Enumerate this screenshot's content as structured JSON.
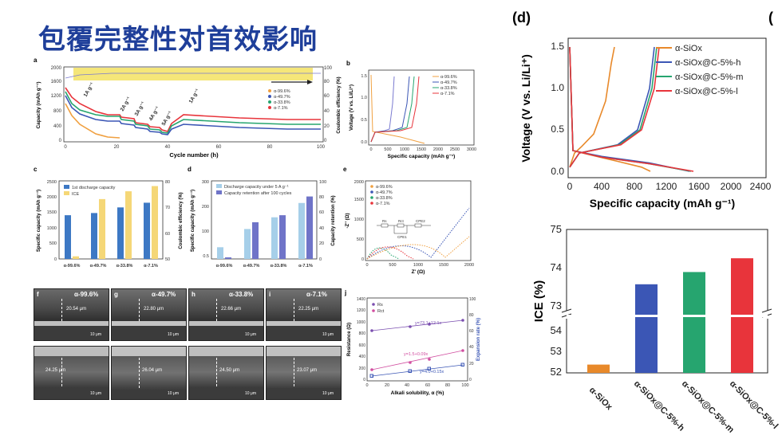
{
  "slide": {
    "title": "包覆完整性对首效影响"
  },
  "panel_a": {
    "letter": "a",
    "xlabel": "Cycle number (h)",
    "ylabel_left": "Capacity (mAh g⁻¹)",
    "ylabel_right": "Coulombic efficiency (%)",
    "rate_labels": [
      "1A g⁻¹",
      "2A g⁻¹",
      "3A g⁻¹",
      "4A g⁻¹",
      "5A g⁻¹",
      "1A g⁻¹"
    ],
    "legend": [
      "α-99.6%",
      "α-49.7%",
      "α-33.8%",
      "α-7.1%"
    ],
    "x_ticks": [
      "0",
      "20",
      "40",
      "60",
      "80",
      "100"
    ],
    "y_ticks": [
      "0",
      "400",
      "800",
      "1200",
      "1600",
      "2000"
    ],
    "y2_ticks": [
      "0",
      "20",
      "40",
      "60",
      "80",
      "100"
    ]
  },
  "panel_b": {
    "letter": "b",
    "xlabel": "Specific capacity (mAh g⁻¹)",
    "ylabel": "Voltage (V vs. Li/Li⁺)",
    "legend": [
      "α-99.6%",
      "α-49.7%",
      "α-33.8%",
      "α-7.1%"
    ],
    "x_ticks": [
      "0",
      "500",
      "1000",
      "1500",
      "2000",
      "2500",
      "3000"
    ],
    "y_ticks": [
      "0.0",
      "0.5",
      "1.0",
      "1.5"
    ]
  },
  "panel_c": {
    "letter": "c",
    "ylabel_left": "Specific capacity (mAh g⁻¹)",
    "ylabel_right": "Coulombic efficiency (%)",
    "legend": [
      "1st discharge capacity",
      "ICE"
    ],
    "categories": [
      "α-99.6%",
      "α-49.7%",
      "α-33.8%",
      "α-7.1%"
    ],
    "y_ticks": [
      "0",
      "500",
      "1000",
      "1500",
      "2000",
      "2500"
    ],
    "y2_ticks": [
      "50",
      "60",
      "70",
      "80"
    ]
  },
  "panel_d_small": {
    "letter": "d",
    "ylabel_left": "Specific capacity (mAh g⁻¹)",
    "ylabel_right": "Capacity retention (%)",
    "legend": [
      "Discharge capacity under 5 A g⁻¹",
      "Capacity retention after 100 cycles"
    ],
    "categories": [
      "α-99.6%",
      "α-49.7%",
      "α-33.8%",
      "α-7.1%"
    ],
    "y_ticks": [
      "0.5",
      "100",
      "200",
      "300"
    ],
    "y2_ticks": [
      "0",
      "20",
      "40",
      "60",
      "80",
      "100"
    ]
  },
  "panel_e": {
    "letter": "e",
    "xlabel": "Z' (Ω)",
    "ylabel": "-Z'' (Ω)",
    "legend": [
      "α-99.6%",
      "α-49.7%",
      "α-33.8%",
      "α-7.1%"
    ],
    "circuit": [
      "Rs",
      "Rct",
      "CPE1",
      "CPE2"
    ],
    "x_ticks": [
      "0",
      "500",
      "1000",
      "1500",
      "2000"
    ],
    "y_ticks": [
      "0",
      "500",
      "1000",
      "1500",
      "2000"
    ]
  },
  "panel_sem": {
    "top_letters": [
      "f",
      "g",
      "h",
      "i"
    ],
    "top_labels": [
      "α-99.6%",
      "α-49.7%",
      "α-33.8%",
      "α-7.1%"
    ],
    "top_thickness": [
      "20.54 μm",
      "22.80 μm",
      "22.66 μm",
      "22.25 μm"
    ],
    "bottom_thickness": [
      "24.25 μm",
      "26.04 μm",
      "24.50 μm",
      "23.07 μm"
    ],
    "scale": "10 μm"
  },
  "panel_j": {
    "letter": "j",
    "xlabel": "Alkali solubility, α (%)",
    "ylabel_left": "Resistance (Ω)",
    "ylabel_right": "Expansion rate (%)",
    "legend": [
      "Rs",
      "Rct"
    ],
    "fits": [
      "y=73.1+12.1x",
      "y=1.5+0.09x",
      "y=4.0+0.15x"
    ],
    "x_ticks": [
      "0",
      "20",
      "40",
      "60",
      "80",
      "100"
    ],
    "y_ticks": [
      "0",
      "200",
      "400",
      "600",
      "800",
      "1000",
      "1200",
      "1400"
    ],
    "y2_ticks": [
      "0",
      "20",
      "40",
      "60",
      "80",
      "100"
    ]
  },
  "panel_d_big": {
    "letter": "(d)",
    "xlabel": "Specific capacity (mAh g⁻¹)",
    "ylabel": "Voltage (V vs. Li/Li⁺)",
    "legend": [
      "α-SiOx",
      "α-SiOx@C-5%-h",
      "α-SiOx@C-5%-m",
      "α-SiOx@C-5%-l"
    ],
    "x_ticks": [
      "0",
      "400",
      "800",
      "1200",
      "1600",
      "2000",
      "2400"
    ],
    "y_ticks": [
      "0.0",
      "0.5",
      "1.0",
      "1.5"
    ]
  },
  "panel_ice": {
    "ylabel": "ICE (%)",
    "categories": [
      "α-SiOx",
      "α-SiOx@C-5%-h",
      "α-SiOx@C-5%-m",
      "α-SiOx@C-5%-l"
    ],
    "y_ticks_upper": [
      "73",
      "74",
      "75"
    ],
    "y_ticks_lower": [
      "52",
      "53",
      "54"
    ],
    "colors": [
      "#e8892a",
      "#3b56b5",
      "#26a56f",
      "#e8343b"
    ]
  },
  "chart_data": [
    {
      "type": "bar",
      "title": "",
      "categories": [
        "α-SiOx",
        "α-SiOx@C-5%-h",
        "α-SiOx@C-5%-m",
        "α-SiOx@C-5%-l"
      ],
      "values": [
        52.4,
        73.65,
        73.97,
        74.33
      ],
      "ylabel": "ICE (%)",
      "ylim": [
        52,
        75
      ]
    },
    {
      "type": "bar",
      "categories": [
        "α-99.6%",
        "α-49.7%",
        "α-33.8%",
        "α-7.1%"
      ],
      "series": [
        {
          "name": "1st discharge capacity",
          "values": [
            1400,
            1470,
            1650,
            1800
          ]
        },
        {
          "name": "ICE",
          "values": [
            51,
            73,
            76,
            78
          ]
        }
      ],
      "ylabel": "Specific capacity (mAh g⁻¹)",
      "ylim": [
        0,
        2500
      ]
    },
    {
      "type": "bar",
      "categories": [
        "α-99.6%",
        "α-49.7%",
        "α-33.8%",
        "α-7.1%"
      ],
      "series": [
        {
          "name": "Discharge capacity under 5 A g⁻¹",
          "values": [
            45,
            115,
            160,
            215
          ]
        },
        {
          "name": "Capacity retention after 100 cycles",
          "values": [
            2,
            47,
            56,
            80
          ]
        }
      ],
      "ylabel": "Specific capacity (mAh g⁻¹)",
      "ylim": [
        0,
        300
      ]
    },
    {
      "type": "line",
      "series": [
        {
          "name": "α-SiOx",
          "discharge": [
            [
              0,
              1.5
            ],
            [
              40,
              0.25
            ],
            [
              250,
              0.2
            ],
            [
              600,
              0.12
            ],
            [
              900,
              0.05
            ],
            [
              1010,
              0.0
            ]
          ],
          "charge": [
            [
              0,
              0.05
            ],
            [
              60,
              0.22
            ],
            [
              150,
              0.3
            ],
            [
              300,
              0.45
            ],
            [
              450,
              0.85
            ],
            [
              520,
              1.3
            ],
            [
              560,
              1.5
            ]
          ]
        },
        {
          "name": "α-SiOx@C-5%-h",
          "discharge": [
            [
              0,
              1.5
            ],
            [
              40,
              0.25
            ],
            [
              400,
              0.18
            ],
            [
              1000,
              0.1
            ],
            [
              1500,
              0.0
            ]
          ],
          "charge": [
            [
              0,
              0.05
            ],
            [
              120,
              0.22
            ],
            [
              600,
              0.32
            ],
            [
              850,
              0.5
            ],
            [
              1000,
              1.0
            ],
            [
              1060,
              1.5
            ]
          ]
        },
        {
          "name": "α-SiOx@C-5%-m",
          "discharge": [
            [
              0,
              1.5
            ],
            [
              40,
              0.25
            ],
            [
              400,
              0.17
            ],
            [
              1000,
              0.09
            ],
            [
              1520,
              0.0
            ]
          ],
          "charge": [
            [
              0,
              0.05
            ],
            [
              120,
              0.22
            ],
            [
              620,
              0.32
            ],
            [
              880,
              0.5
            ],
            [
              1030,
              1.0
            ],
            [
              1090,
              1.5
            ]
          ]
        },
        {
          "name": "α-SiOx@C-5%-l",
          "discharge": [
            [
              0,
              1.5
            ],
            [
              40,
              0.25
            ],
            [
              400,
              0.17
            ],
            [
              1000,
              0.09
            ],
            [
              1550,
              0.0
            ]
          ],
          "charge": [
            [
              0,
              0.05
            ],
            [
              120,
              0.22
            ],
            [
              640,
              0.32
            ],
            [
              900,
              0.5
            ],
            [
              1060,
              1.0
            ],
            [
              1120,
              1.5
            ]
          ]
        }
      ],
      "xlabel": "Specific capacity (mAh g⁻¹)",
      "ylabel": "Voltage (V vs. Li/Li⁺)",
      "xlim": [
        0,
        2400
      ],
      "ylim": [
        -0.05,
        1.55
      ]
    }
  ]
}
